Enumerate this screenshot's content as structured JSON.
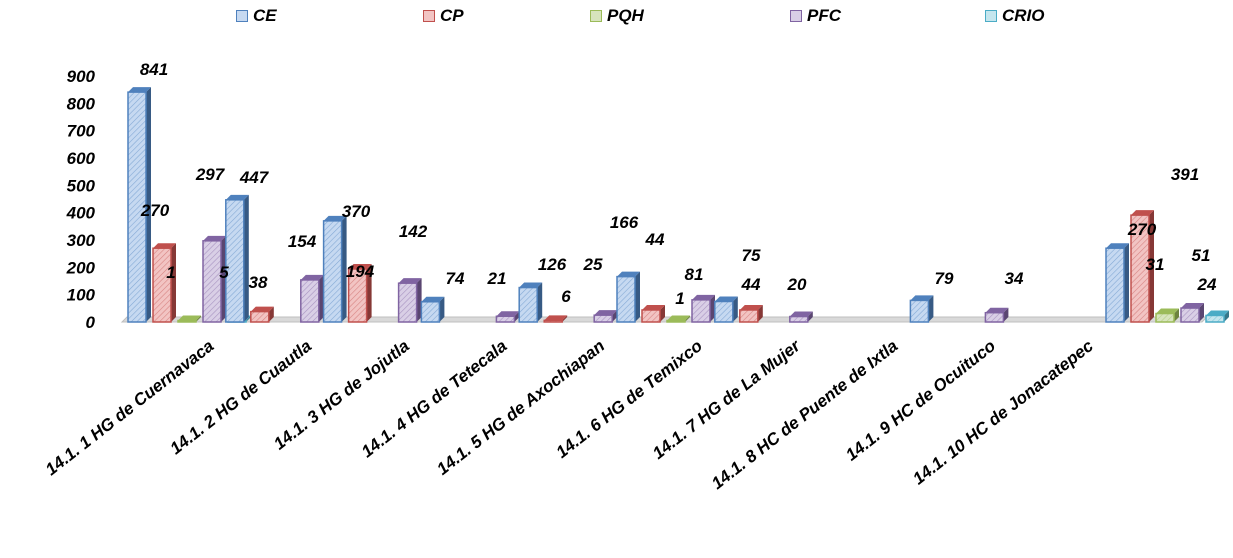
{
  "chart_data": {
    "type": "bar",
    "title": "",
    "xlabel": "",
    "ylabel": "",
    "ylim": [
      0,
      900
    ],
    "yticks": [
      "0",
      "100",
      "200",
      "300",
      "400",
      "500",
      "600",
      "700",
      "800",
      "900"
    ],
    "legend_position": "top",
    "grid": false,
    "categories": [
      "14.1. 1 HG de Cuernavaca",
      "14.1. 2 HG de Cuautla",
      "14.1. 3 HG de Jojutla",
      "14.1. 4 HG de Tetecala",
      "14.1. 5 HG de Axochiapan",
      "14.1. 6 HG de Temixco",
      "14.1. 7 HG de La Mujer",
      "14.1. 8 HC de Puente de Ixtla",
      "14.1. 9 HC de Ocuituco",
      "14.1. 10 HC de Jonacatepec",
      ""
    ],
    "series": [
      {
        "name": "CE",
        "color": "#4f81bd",
        "fill": "#c6d9f1",
        "values": [
          841,
          447,
          370,
          74,
          126,
          166,
          75,
          null,
          79,
          null,
          270
        ],
        "labels": [
          "841",
          "447",
          "370",
          "74",
          "126",
          "166",
          "75",
          "",
          "79",
          "",
          "270"
        ]
      },
      {
        "name": "CP",
        "color": "#c0504d",
        "fill": "#f2c4c3",
        "values": [
          270,
          38,
          194,
          null,
          6,
          44,
          44,
          null,
          null,
          null,
          391
        ],
        "labels": [
          "270",
          "38",
          "194",
          "",
          "6",
          "44",
          "44",
          "",
          "",
          "",
          "391"
        ]
      },
      {
        "name": "PQH",
        "color": "#9bbb59",
        "fill": "#d7e4bd",
        "values": [
          1,
          null,
          null,
          null,
          null,
          1,
          null,
          null,
          null,
          null,
          31
        ],
        "labels": [
          "1",
          "",
          "",
          "",
          "",
          "1",
          "",
          "",
          "",
          "",
          "31"
        ]
      },
      {
        "name": "PFC",
        "color": "#8064a2",
        "fill": "#d9cfe6",
        "values": [
          297,
          154,
          142,
          21,
          25,
          81,
          20,
          null,
          34,
          null,
          51
        ],
        "labels": [
          "297",
          "154",
          "142",
          "21",
          "25",
          "81",
          "20",
          "",
          "34",
          "",
          "51"
        ]
      },
      {
        "name": "CRIO",
        "color": "#4bacc6",
        "fill": "#c5e6ee",
        "values": [
          5,
          null,
          null,
          null,
          null,
          null,
          null,
          null,
          null,
          null,
          24
        ],
        "labels": [
          "5",
          "",
          "",
          "",
          "",
          "",
          "",
          "",
          "",
          "",
          "24"
        ]
      }
    ]
  }
}
